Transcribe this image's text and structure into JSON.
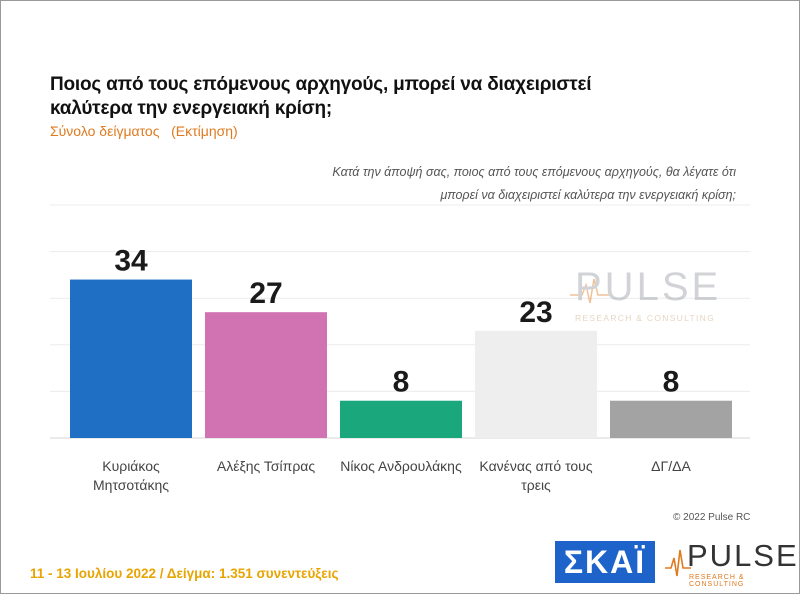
{
  "header": {
    "title": "Ποιος από τους επόμενους αρχηγούς, μπορεί να διαχειριστεί καλύτερα την ενεργειακή κρίση;",
    "subtitle": "Σύνολο δείγματος   (Εκτίμηση)",
    "question": "Κατά την άποψή σας, ποιος από τους επόμενους αρχηγούς, θα λέγατε ότι μπορεί να διαχειριστεί καλύτερα την ενεργειακή κρίση;"
  },
  "chart_data": {
    "type": "bar",
    "categories": [
      "Κυριάκος Μητσοτάκης",
      "Αλέξης Τσίπρας",
      "Νίκος Ανδρουλάκης",
      "Κανένας από τους τρεις",
      "ΔΓ/ΔΑ"
    ],
    "values": [
      34,
      27,
      8,
      23,
      8
    ],
    "colors": [
      "#1f6fc4",
      "#d173b3",
      "#1aa77b",
      "#eeeeee",
      "#a3a3a3"
    ],
    "ylim": [
      0,
      50
    ],
    "grid": true
  },
  "copyright": "© 2022 Pulse RC",
  "footer": "11 - 13 Ιουλίου 2022 / Δείγμα: 1.351 συνεντεύξεις",
  "logos": {
    "skai": "ΣΚΑΪ",
    "pulse": "PULSE",
    "pulse_sub": "RESEARCH & CONSULTING"
  }
}
